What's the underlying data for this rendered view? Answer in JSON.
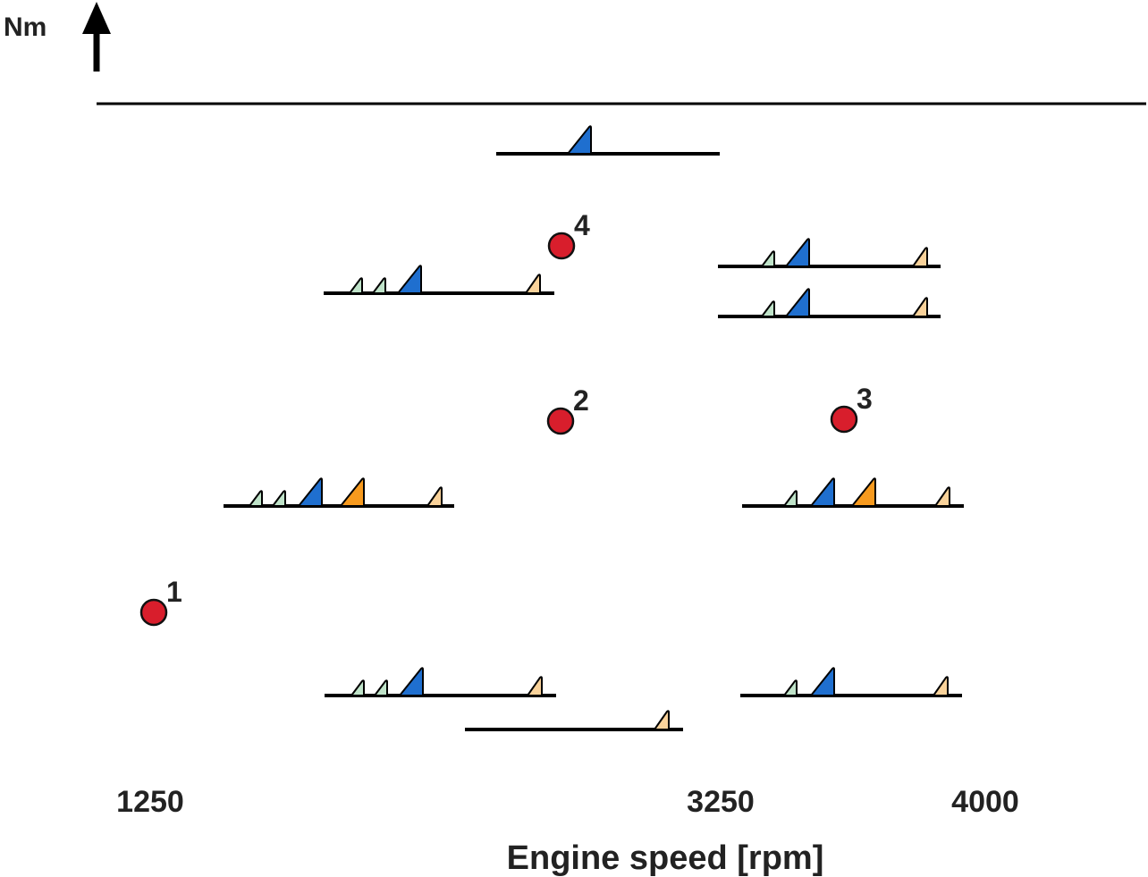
{
  "chart_data": {
    "type": "scatter",
    "title": "",
    "xlabel": "Engine speed [rpm]",
    "ylabel": "Nm",
    "x_ticks": [
      "1250",
      "3250",
      "4000"
    ],
    "colors": {
      "operating_point": "#d81e2c",
      "pilot_small": "#bfe3c9",
      "pilot_large": "#1f6fcf",
      "main": "#f79a1e",
      "post": "#f9d29a",
      "axis": "#000000"
    },
    "operating_points": [
      {
        "label": "1",
        "rpm": 1250
      },
      {
        "label": "2",
        "rpm": 2500
      },
      {
        "label": "3",
        "rpm": 3350
      },
      {
        "label": "4",
        "rpm": 2500
      }
    ],
    "injection_patterns": [
      {
        "id": "p1",
        "rpm_start": 2200,
        "rpm_end": 3200,
        "pulses": [
          "pilot-large"
        ]
      },
      {
        "id": "p2",
        "rpm_start": 1800,
        "rpm_end": 2500,
        "pulses": [
          "pilot-small",
          "pilot-small",
          "pilot-large",
          "post"
        ]
      },
      {
        "id": "p3",
        "rpm_start": 3200,
        "rpm_end": 4000,
        "pulses": [
          "pilot-small",
          "pilot-large",
          "post"
        ]
      },
      {
        "id": "p4",
        "rpm_start": 3200,
        "rpm_end": 4000,
        "pulses": [
          "pilot-small",
          "pilot-large",
          "post"
        ]
      },
      {
        "id": "p5",
        "rpm_start": 1500,
        "rpm_end": 2200,
        "pulses": [
          "pilot-small",
          "pilot-small",
          "pilot-large",
          "main",
          "post"
        ]
      },
      {
        "id": "p6",
        "rpm_start": 3300,
        "rpm_end": 4000,
        "pulses": [
          "pilot-small",
          "pilot-large",
          "main",
          "post"
        ]
      },
      {
        "id": "p7",
        "rpm_start": 1800,
        "rpm_end": 2500,
        "pulses": [
          "pilot-small",
          "pilot-small",
          "pilot-large",
          "post"
        ]
      },
      {
        "id": "p8",
        "rpm_start": 3300,
        "rpm_end": 4000,
        "pulses": [
          "pilot-small",
          "pilot-large",
          "post"
        ]
      },
      {
        "id": "p9",
        "rpm_start": 2100,
        "rpm_end": 3000,
        "pulses": [
          "post"
        ]
      }
    ]
  }
}
